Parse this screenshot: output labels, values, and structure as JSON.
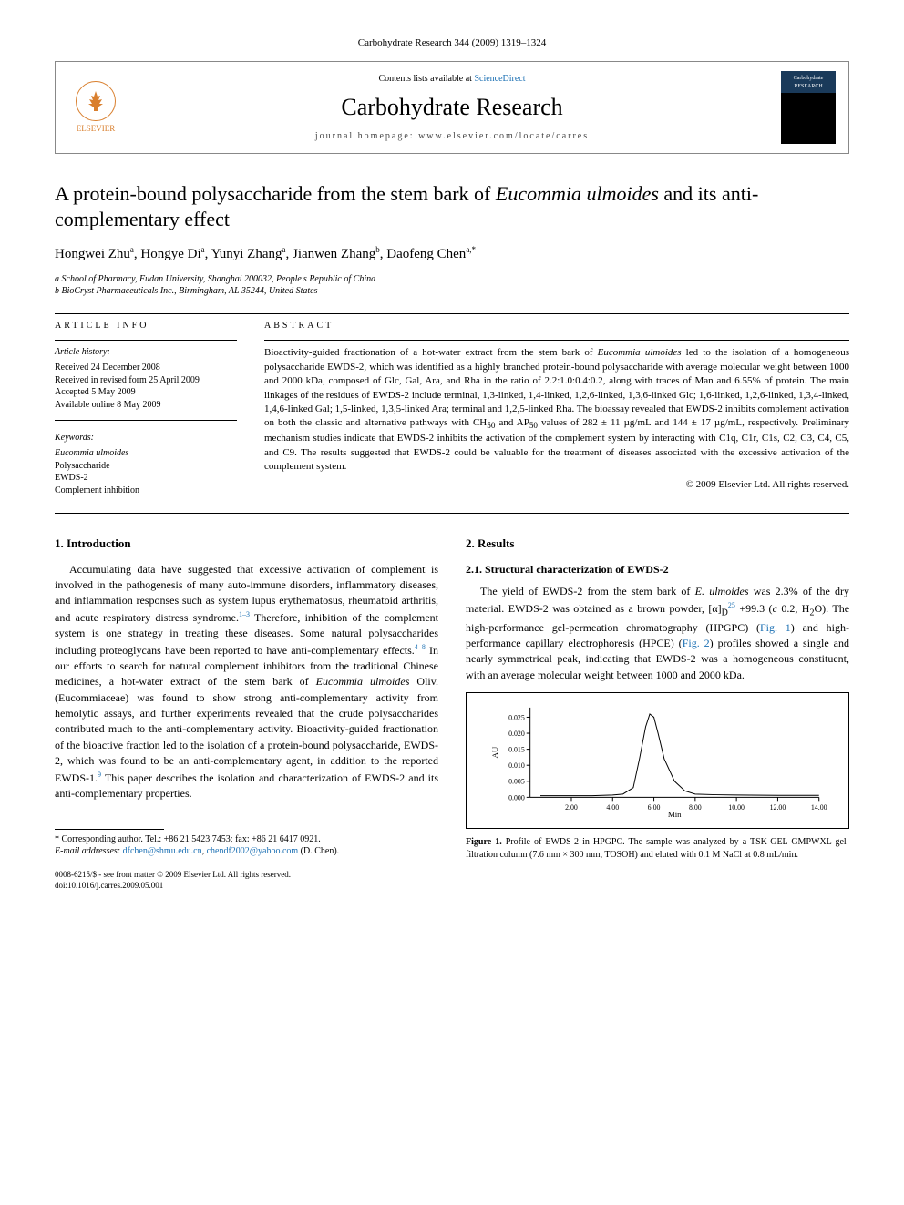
{
  "journal_ref": "Carbohydrate Research 344 (2009) 1319–1324",
  "header": {
    "contents_prefix": "Contents lists available at ",
    "contents_link": "ScienceDirect",
    "journal_name": "Carbohydrate Research",
    "homepage_prefix": "journal homepage: ",
    "homepage_url": "www.elsevier.com/locate/carres",
    "publisher_name": "ELSEVIER",
    "cover_title": "Carbohydrate RESEARCH"
  },
  "title_html": "A protein-bound polysaccharide from the stem bark of <em>Eucommia ulmoides</em> and its anti-complementary effect",
  "authors_html": "Hongwei Zhu<sup>a</sup>, Hongye Di<sup>a</sup>, Yunyi Zhang<sup>a</sup>, Jianwen Zhang<sup>b</sup>, Daofeng Chen<sup>a,*</sup>",
  "affiliations": [
    "a School of Pharmacy, Fudan University, Shanghai 200032, People's Republic of China",
    "b BioCryst Pharmaceuticals Inc., Birmingham, AL 35244, United States"
  ],
  "article_info_label": "ARTICLE INFO",
  "abstract_label": "ABSTRACT",
  "history_label": "Article history:",
  "history": [
    "Received 24 December 2008",
    "Received in revised form 25 April 2009",
    "Accepted 5 May 2009",
    "Available online 8 May 2009"
  ],
  "keywords_label": "Keywords:",
  "keywords_html": [
    "<em>Eucommia ulmoides</em>",
    "Polysaccharide",
    "EWDS-2",
    "Complement inhibition"
  ],
  "abstract_html": "Bioactivity-guided fractionation of a hot-water extract from the stem bark of <em>Eucommia ulmoides</em> led to the isolation of a homogeneous polysaccharide EWDS-2, which was identified as a highly branched protein-bound polysaccharide with average molecular weight between 1000 and 2000 kDa, composed of Glc, Gal, Ara, and Rha in the ratio of 2.2:1.0:0.4:0.2, along with traces of Man and 6.55% of protein. The main linkages of the residues of EWDS-2 include terminal, 1,3-linked, 1,4-linked, 1,2,6-linked, 1,3,6-linked Glc; 1,6-linked, 1,2,6-linked, 1,3,4-linked, 1,4,6-linked Gal; 1,5-linked, 1,3,5-linked Ara; terminal and 1,2,5-linked Rha. The bioassay revealed that EWDS-2 inhibits complement activation on both the classic and alternative pathways with CH<sub>50</sub> and AP<sub>50</sub> values of 282 ± 11 µg/mL and 144 ± 17 µg/mL, respectively. Preliminary mechanism studies indicate that EWDS-2 inhibits the activation of the complement system by interacting with C1q, C1r, C1s, C2, C3, C4, C5, and C9. The results suggested that EWDS-2 could be valuable for the treatment of diseases associated with the excessive activation of the complement system.",
  "copyright_line": "© 2009 Elsevier Ltd. All rights reserved.",
  "sections": {
    "intro_heading": "1. Introduction",
    "intro_html": "Accumulating data have suggested that excessive activation of complement is involved in the pathogenesis of many auto-immune disorders, inflammatory diseases, and inflammation responses such as system lupus erythematosus, rheumatoid arthritis, and acute respiratory distress syndrome.<sup>1–3</sup> Therefore, inhibition of the complement system is one strategy in treating these diseases. Some natural polysaccharides including proteoglycans have been reported to have anti-complementary effects.<sup>4–8</sup> In our efforts to search for natural complement inhibitors from the traditional Chinese medicines, a hot-water extract of the stem bark of <em>Eucommia ulmoides</em> Oliv. (Eucommiaceae) was found to show strong anti-complementary activity from hemolytic assays, and further experiments revealed that the crude polysaccharides contributed much to the anti-complementary activity. Bioactivity-guided fractionation of the bioactive fraction led to the isolation of a protein-bound polysaccharide, EWDS-2, which was found to be an anti-complementary agent, in addition to the reported EWDS-1.<sup>9</sup> This paper describes the isolation and characterization of EWDS-2 and its anti-complementary properties.",
    "results_heading": "2. Results",
    "sub_heading": "2.1. Structural characterization of EWDS-2",
    "results_html": "The yield of EWDS-2 from the stem bark of <em>E. ulmoides</em> was 2.3% of the dry material. EWDS-2 was obtained as a brown powder, [α]<sub>D</sub><sup>25</sup> +99.3 (<em>c</em> 0.2, H<sub>2</sub>O). The high-performance gel-permeation chromatography (HPGPC) (<span class=\"fig-ref\">Fig. 1</span>) and high-performance capillary electrophoresis (HPCE) (<span class=\"fig-ref\">Fig. 2</span>) profiles showed a single and nearly symmetrical peak, indicating that EWDS-2 was a homogeneous constituent, with an average molecular weight between 1000 and 2000 kDa."
  },
  "figure1": {
    "type": "line",
    "x_label": "Min",
    "y_label": "AU",
    "x_ticks": [
      2.0,
      4.0,
      6.0,
      8.0,
      10.0,
      12.0,
      14.0
    ],
    "y_ticks": [
      0.0,
      0.005,
      0.01,
      0.015,
      0.02,
      0.025
    ],
    "xlim": [
      0,
      14
    ],
    "ylim": [
      0,
      0.028
    ],
    "line_color": "#000000",
    "background_color": "#ffffff",
    "axis_color": "#000000",
    "tick_fontsize": 8,
    "label_fontsize": 9,
    "line_width": 1,
    "data_x": [
      0.5,
      2,
      3,
      4,
      4.5,
      5.0,
      5.3,
      5.6,
      5.8,
      6.0,
      6.2,
      6.5,
      7.0,
      7.5,
      8.0,
      9,
      10,
      12,
      14
    ],
    "data_y": [
      0.0005,
      0.0005,
      0.0005,
      0.0007,
      0.001,
      0.003,
      0.012,
      0.022,
      0.026,
      0.025,
      0.02,
      0.012,
      0.005,
      0.002,
      0.001,
      0.0008,
      0.0007,
      0.0006,
      0.0006
    ]
  },
  "figure1_caption_html": "<strong>Figure 1.</strong> Profile of EWDS-2 in HPGPC. The sample was analyzed by a TSK-GEL GMPWXL gel-filtration column (7.6 mm × 300 mm, TOSOH) and eluted with 0.1 M NaCl at 0.8 mL/min.",
  "footnote": {
    "corr_prefix": "* Corresponding author. Tel.: +86 21 5423 7453; fax: +86 21 6417 0921.",
    "email_label": "E-mail addresses:",
    "email1": "dfchen@shmu.edu.cn",
    "email2": "chendf2002@yahoo.com",
    "email_suffix": "(D. Chen)."
  },
  "footer": {
    "line1": "0008-6215/$ - see front matter © 2009 Elsevier Ltd. All rights reserved.",
    "line2": "doi:10.1016/j.carres.2009.05.001"
  }
}
